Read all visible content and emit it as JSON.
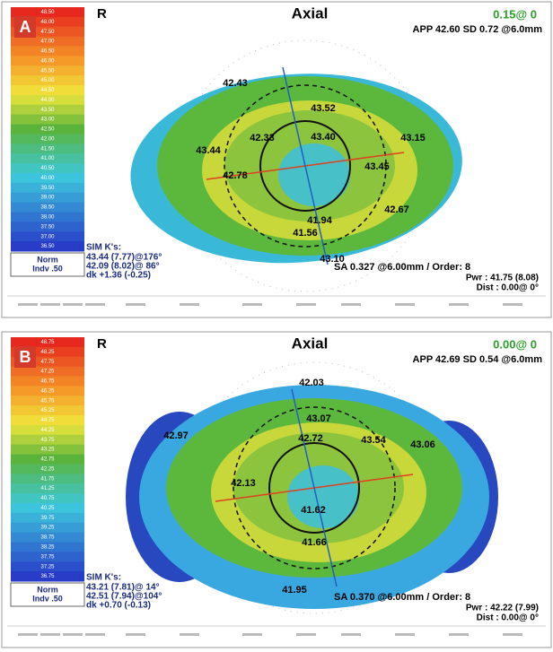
{
  "panels": [
    {
      "label": "A",
      "eye": "R",
      "map": "Axial",
      "offset": "0.15@ 0",
      "app": "APP 42.60 SD 0.72 @6.0mm",
      "scale": [
        "48.50",
        "48.00",
        "47.50",
        "47.00",
        "46.50",
        "46.00",
        "45.50",
        "45.00",
        "44.50",
        "44.00",
        "43.50",
        "43.00",
        "42.50",
        "42.00",
        "41.50",
        "41.00",
        "40.50",
        "40.00",
        "39.50",
        "39.00",
        "38.50",
        "38.00",
        "37.50",
        "37.00",
        "36.50"
      ],
      "scale_norm": "Norm",
      "scale_indv": "Indv .50",
      "sim_title": "SIM K's:",
      "sim": [
        "43.44 (7.77)@176°",
        "42.09 (8.02)@ 86°",
        "dk +1.36 (-0.25)"
      ],
      "sa": "SA  0.327 @6.00mm / Order: 8",
      "pwr": "Pwr : 41.75 (8.08)",
      "dist": "Dist : 0.00@ 0°",
      "readings": [
        "42.43",
        "43.52",
        "42.33",
        "43.40",
        "43.15",
        "43.44",
        "43.45",
        "42.78",
        "41.94",
        "42.67",
        "41.56",
        "43.10"
      ]
    },
    {
      "label": "B",
      "eye": "R",
      "map": "Axial",
      "offset": "0.00@ 0",
      "app": "APP 42.69 SD 0.54 @6.0mm",
      "scale": [
        "48.75",
        "48.25",
        "47.75",
        "47.25",
        "46.75",
        "46.25",
        "45.75",
        "45.25",
        "44.75",
        "44.25",
        "43.75",
        "43.25",
        "42.75",
        "42.25",
        "41.75",
        "41.25",
        "40.75",
        "40.25",
        "39.75",
        "39.25",
        "38.75",
        "38.25",
        "37.75",
        "37.25",
        "36.75"
      ],
      "scale_norm": "Norm",
      "scale_indv": "Indv .50",
      "sim_title": "SIM K's:",
      "sim": [
        "43.21 (7.81)@ 14°",
        "42.51 (7.94)@104°",
        "dk +0.70 (-0.13)"
      ],
      "sa": "SA  0.370 @6.00mm / Order: 8",
      "pwr": "Pwr : 42.22 (7.99)",
      "dist": "Dist : 0.00@ 0°",
      "readings": [
        "42.03",
        "43.07",
        "42.97",
        "42.72",
        "43.54",
        "43.06",
        "42.13",
        "41.62",
        "41.66",
        "41.95"
      ]
    }
  ]
}
